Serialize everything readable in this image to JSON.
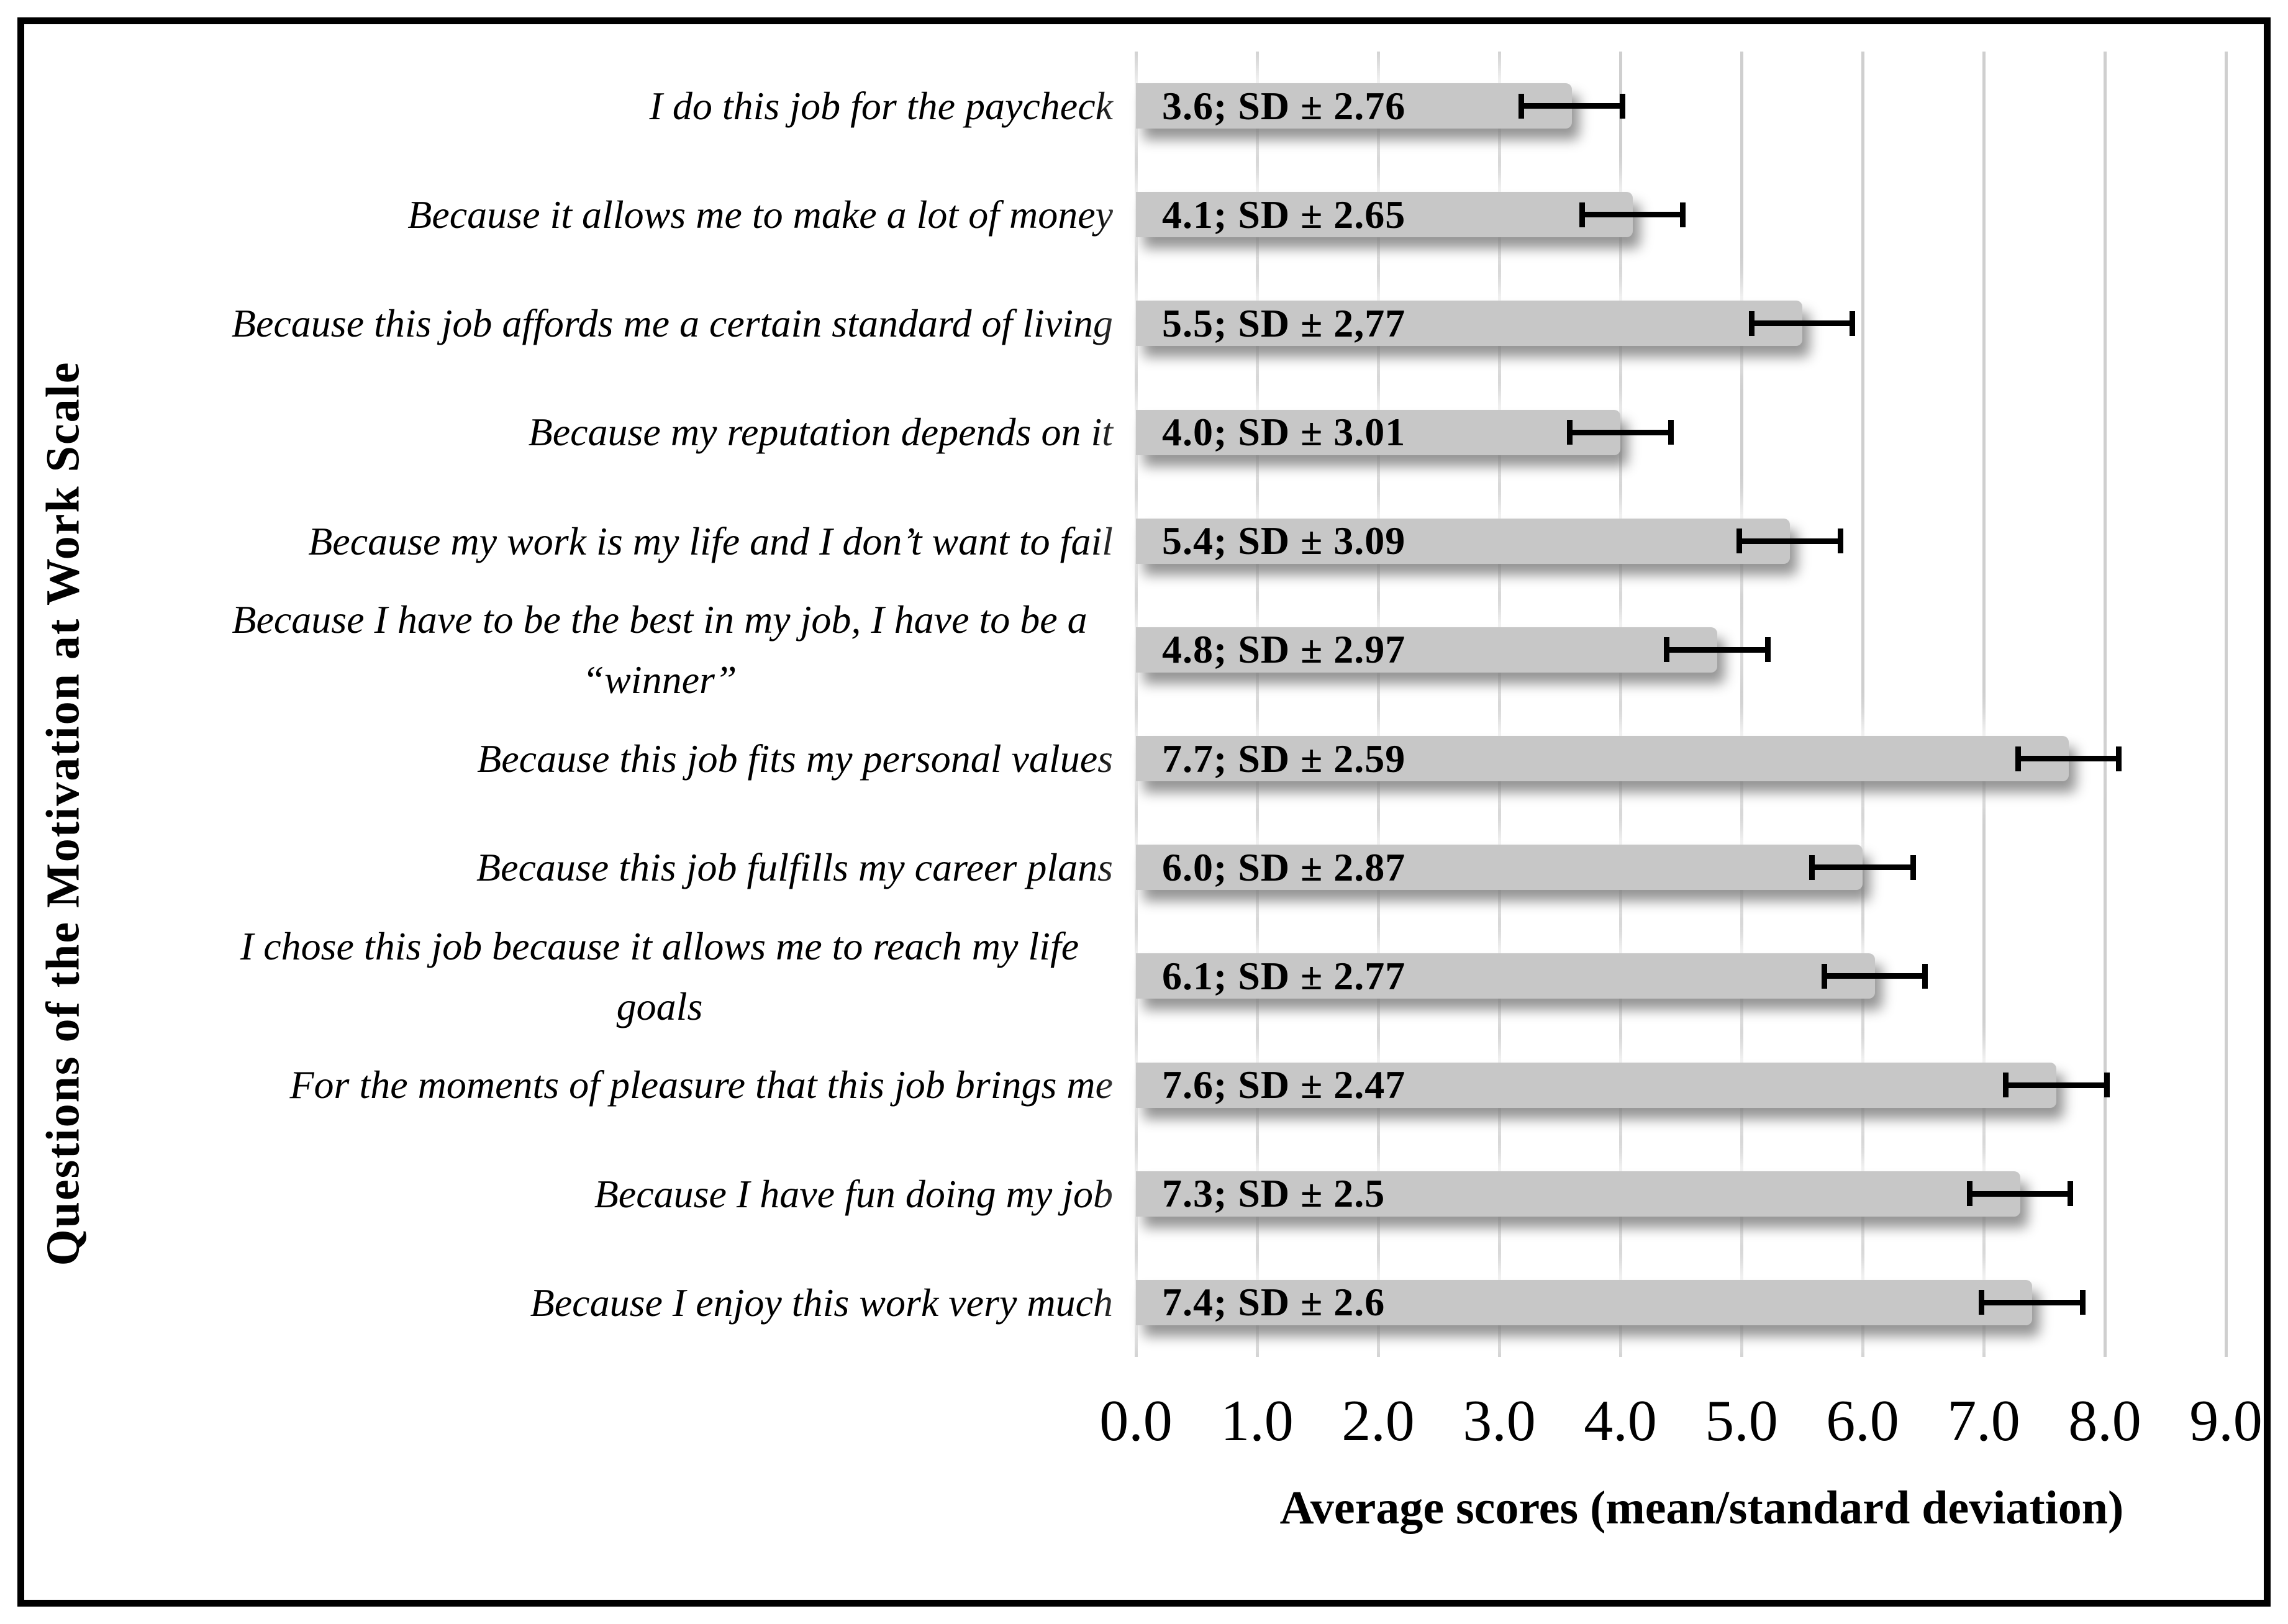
{
  "chart_data": {
    "type": "bar",
    "orientation": "horizontal",
    "title": "",
    "xlabel": "Average scores (mean/standard deviation)",
    "ylabel": "Questions of the Motivation at Work Scale",
    "xlim": [
      0.0,
      9.0
    ],
    "x_ticks": [
      0.0,
      1.0,
      2.0,
      3.0,
      4.0,
      5.0,
      6.0,
      7.0,
      8.0,
      9.0
    ],
    "x_tick_labels": [
      "0.0",
      "1.0",
      "2.0",
      "3.0",
      "4.0",
      "5.0",
      "6.0",
      "7.0",
      "8.0",
      "9.0"
    ],
    "grid": "vertical-gridlines-on",
    "legend": "none",
    "bar_color": "#c7c7c7",
    "error_bar_color": "#000000",
    "error_bar_halfwidth_est": 0.44,
    "categories": [
      "I do this job for the paycheck",
      "Because it allows me to make a lot of money",
      "Because this job affords me a certain standard of living",
      "Because my reputation depends on it",
      "Because my work is my life and I don’t want to fail",
      "Because I have to be the best in my job, I have to be a “winner”",
      "Because this job fits my personal values",
      "Because this job fulfills my career plans",
      "I chose this job because it allows me to reach my life goals",
      "For the moments of pleasure that this job brings me",
      "Because I have fun doing my job",
      "Because I enjoy this work very much"
    ],
    "values": [
      3.6,
      4.1,
      5.5,
      4.0,
      5.4,
      4.8,
      7.7,
      6.0,
      6.1,
      7.6,
      7.3,
      7.4
    ],
    "sd": [
      2.76,
      2.65,
      2.77,
      3.01,
      3.09,
      2.97,
      2.59,
      2.87,
      2.77,
      2.47,
      2.5,
      2.6
    ],
    "data_labels": [
      "3.6; SD ± 2.76",
      "4.1; SD ± 2.65",
      "5.5; SD ± 2,77",
      "4.0; SD ± 3.01",
      "5.4; SD ± 3.09",
      "4.8; SD ± 2.97",
      "7.7; SD ± 2.59",
      "6.0; SD ± 2.87",
      "6.1; SD ± 2.77",
      "7.6; SD ± 2.47",
      "7.3; SD ± 2.5",
      "7.4; SD ± 2.6"
    ]
  }
}
